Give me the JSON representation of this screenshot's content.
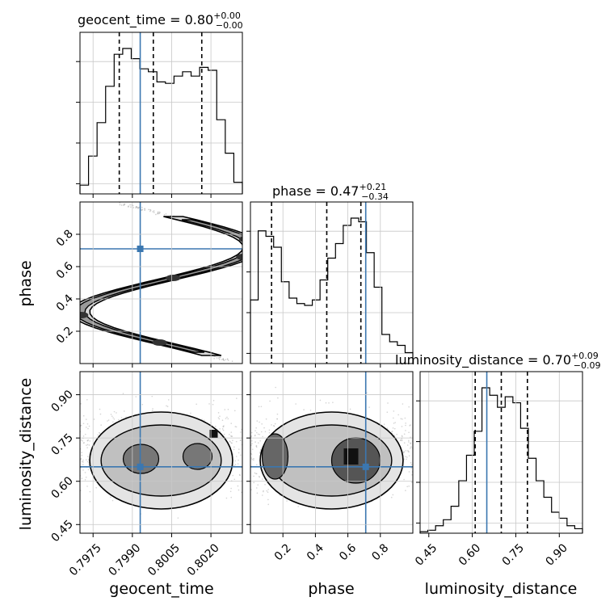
{
  "chart_data": {
    "type": "corner",
    "parameters": [
      "geocent_time",
      "phase",
      "luminosity_distance"
    ],
    "truths": {
      "geocent_time": 0.7993,
      "phase": 0.71,
      "luminosity_distance": 0.65
    },
    "titles": [
      {
        "param": "geocent_time",
        "label": "geocent_time = 0.80",
        "plus": "+0.00",
        "minus": "−0.00"
      },
      {
        "param": "phase",
        "label": "phase = 0.47",
        "plus": "+0.21",
        "minus": "−0.34"
      },
      {
        "param": "luminosity_distance",
        "label": "luminosity_distance = 0.70",
        "plus": "+0.09",
        "minus": "−0.09"
      }
    ],
    "axis_labels": {
      "x": [
        "geocent_time",
        "phase",
        "luminosity_distance"
      ],
      "y": [
        "phase",
        "luminosity_distance"
      ]
    },
    "ticks": {
      "geocent_time": [
        "0.7975",
        "0.7990",
        "0.8005",
        "0.8020"
      ],
      "phase": [
        "0.2",
        "0.4",
        "0.6",
        "0.8"
      ],
      "luminosity_distance": [
        "0.45",
        "0.60",
        "0.75",
        "0.90"
      ]
    },
    "ranges": {
      "geocent_time": [
        0.797,
        0.8032
      ],
      "phase": [
        0.0,
        1.0
      ],
      "luminosity_distance": [
        0.42,
        0.98
      ]
    },
    "histograms": {
      "geocent_time": {
        "edges_range": [
          0.797,
          0.8032
        ],
        "counts": [
          6,
          26,
          49,
          74,
          96,
          100,
          93,
          86,
          84,
          77,
          76,
          81,
          84,
          81,
          87,
          85,
          51,
          28,
          8
        ]
      },
      "phase": {
        "edges_range": [
          0.0,
          1.0
        ],
        "counts": [
          35,
          73,
          70,
          64,
          45,
          36,
          33,
          32,
          35,
          46,
          58,
          66,
          76,
          80,
          78,
          61,
          42,
          16,
          12,
          10,
          6
        ]
      },
      "luminosity_distance": {
        "edges_range": [
          0.42,
          0.98
        ],
        "counts": [
          1,
          2,
          5,
          9,
          18,
          35,
          52,
          68,
          97,
          92,
          84,
          91,
          87,
          70,
          50,
          35,
          24,
          14,
          10,
          5,
          3
        ]
      }
    },
    "quantile_lines": {
      "geocent_time": [
        0.7985,
        0.7998,
        0.80165
      ],
      "phase": [
        0.13,
        0.47,
        0.68
      ],
      "luminosity_distance": [
        0.61,
        0.7,
        0.79
      ]
    },
    "grid": true
  }
}
